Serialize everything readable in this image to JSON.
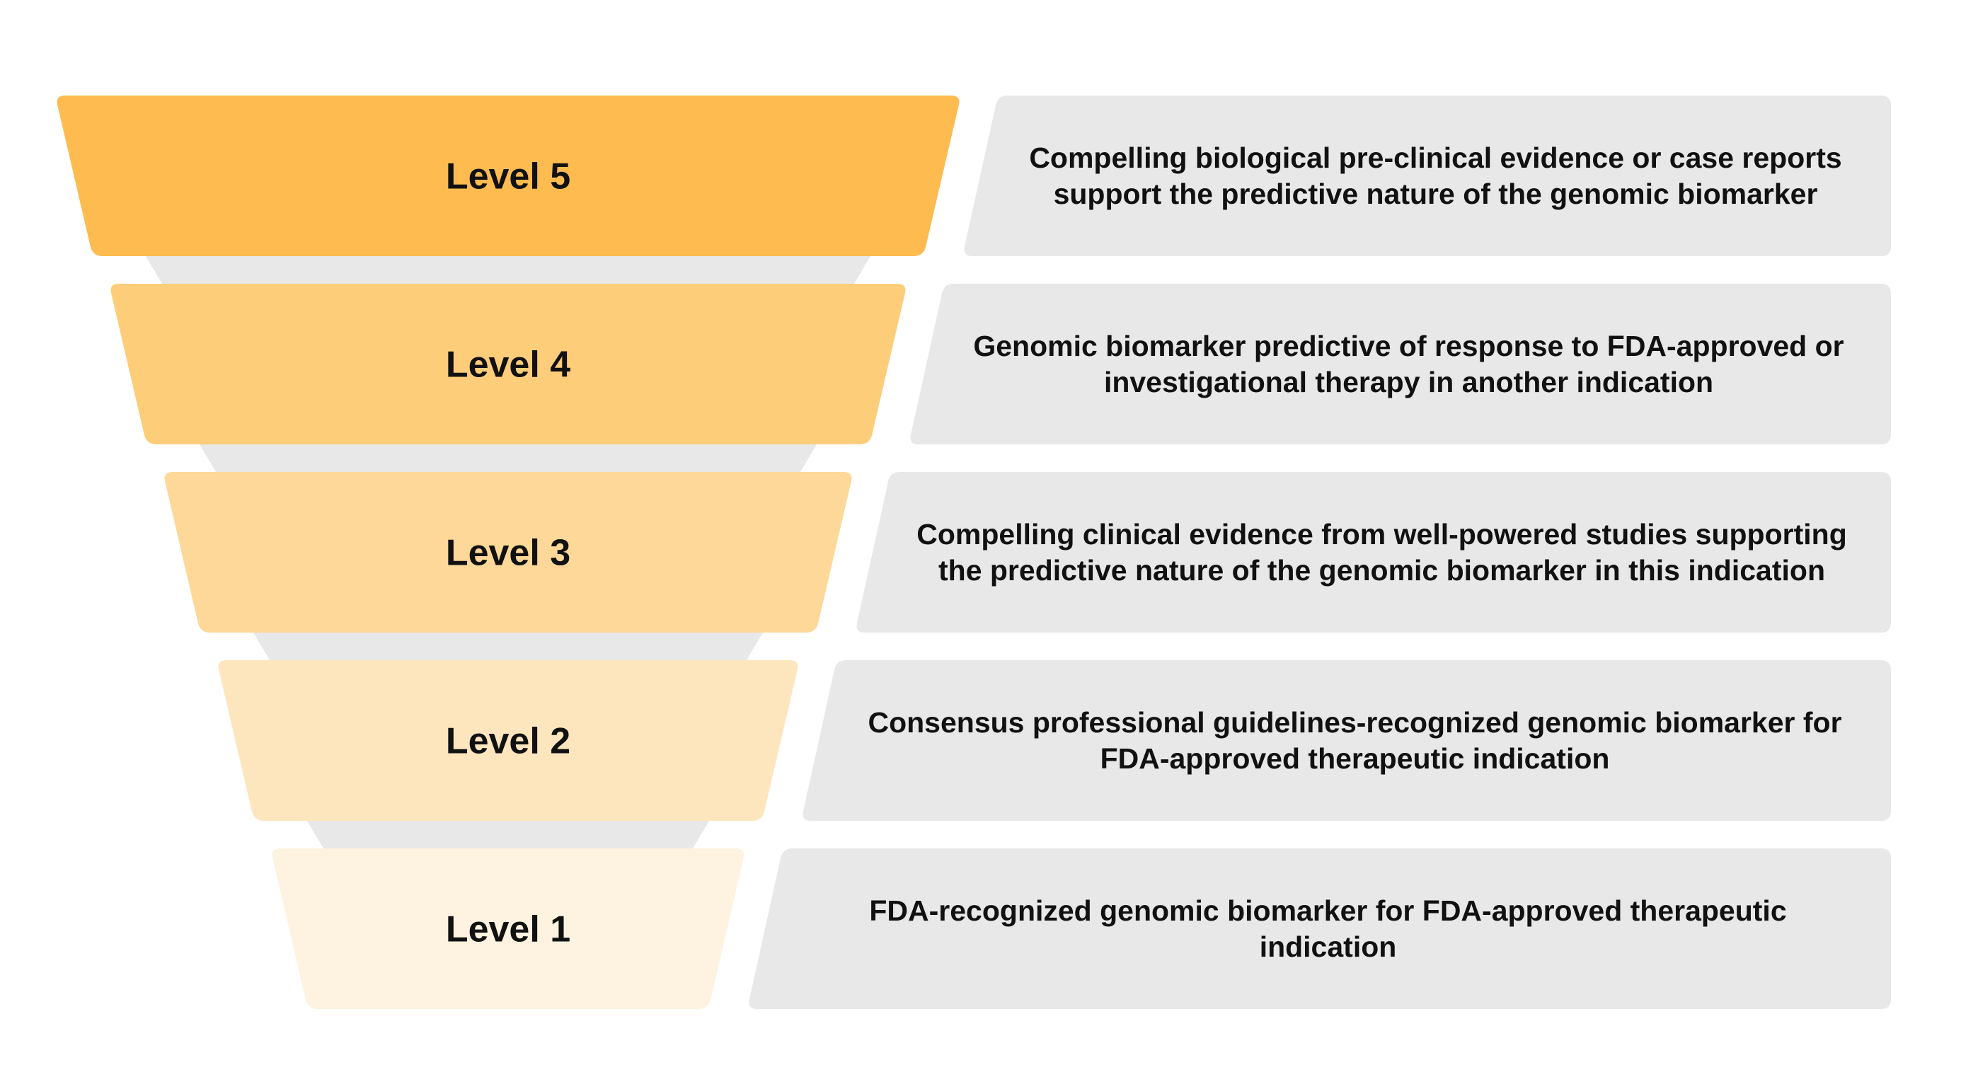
{
  "levels": [
    {
      "label": "Level 5",
      "description_lines": [
        "Compelling biological pre-clinical evidence or case reports",
        "support the predictive nature of the genomic biomarker"
      ],
      "color": "#FDBB50"
    },
    {
      "label": "Level 4",
      "description_lines": [
        "Genomic biomarker predictive of response to FDA-approved or",
        "investigational therapy in another indication"
      ],
      "color": "#FDCD7A"
    },
    {
      "label": "Level 3",
      "description_lines": [
        "Compelling clinical evidence from well-powered studies supporting",
        "the predictive nature of the genomic biomarker in this indication"
      ],
      "color": "#FDD898"
    },
    {
      "label": "Level 2",
      "description_lines": [
        "Consensus professional guidelines-recognized genomic biomarker for",
        "FDA-approved therapeutic indication"
      ],
      "color": "#FDE5BE"
    },
    {
      "label": "Level 1",
      "description_lines": [
        "FDA-recognized genomic biomarker for FDA-approved therapeutic",
        "indication"
      ],
      "color": "#FEF3E1"
    }
  ],
  "colors": {
    "panel": "#E8E8E8",
    "connector": "#E8E8E8",
    "text": "#111111"
  }
}
